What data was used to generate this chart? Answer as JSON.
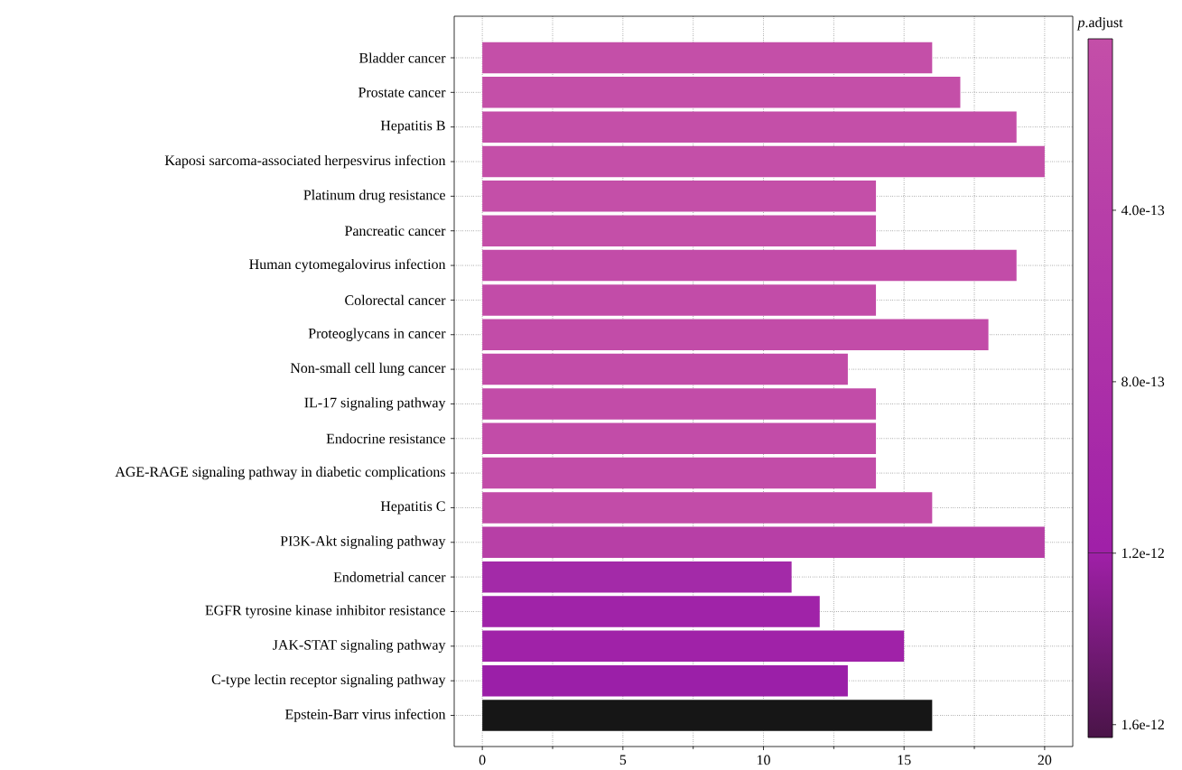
{
  "chart_data": {
    "type": "bar",
    "orientation": "horizontal",
    "clabel": "*p*.adjust",
    "categories": [
      "Bladder cancer",
      "Prostate cancer",
      "Hepatitis B",
      "Kaposi sarcoma-associated herpesvirus infection",
      "Platinum drug resistance",
      "Pancreatic cancer",
      "Human cytomegalovirus infection",
      "Colorectal cancer",
      "Proteoglycans in cancer",
      "Non-small cell lung cancer",
      "IL-17 signaling pathway",
      "Endocrine resistance",
      "AGE-RAGE signaling pathway in diabetic complications",
      "Hepatitis C",
      "PI3K-Akt signaling pathway",
      "Endometrial cancer",
      "EGFR tyrosine kinase inhibitor resistance",
      "JAK-STAT signaling pathway",
      "C-type lectin receptor signaling pathway",
      "Epstein-Barr virus infection"
    ],
    "values": [
      16,
      17,
      19,
      20,
      14,
      14,
      19,
      14,
      18,
      13,
      14,
      14,
      14,
      16,
      20,
      11,
      12,
      15,
      13,
      16
    ],
    "colors": [
      "#c44fa8",
      "#c44fa8",
      "#c44fa8",
      "#c44fa8",
      "#c44fa8",
      "#c44fa8",
      "#c24ca8",
      "#c24ca8",
      "#c24ca8",
      "#c24ca8",
      "#c24ca8",
      "#c24ca8",
      "#c24ca8",
      "#c24ca8",
      "#b73fa6",
      "#a32aa8",
      "#a023a8",
      "#a022a8",
      "#9b1fa8",
      "#161616"
    ],
    "xlim": [
      -1,
      21
    ],
    "xticks": [
      0,
      5,
      10,
      15,
      20
    ],
    "grid": true,
    "clim": [
      0,
      1.63e-12
    ],
    "cticks": [
      {
        "value": 4e-13,
        "label": "4.0e-13"
      },
      {
        "value": 8e-13,
        "label": "8.0e-13"
      },
      {
        "value": 1.2e-12,
        "label": "1.2e-12"
      },
      {
        "value": 1.6e-12,
        "label": "1.6e-12"
      }
    ]
  }
}
